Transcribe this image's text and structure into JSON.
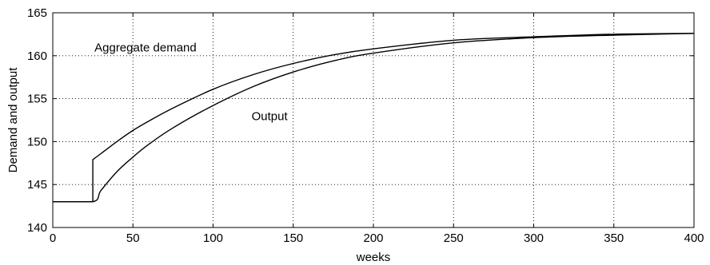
{
  "chart_data": {
    "type": "line",
    "title": "",
    "xlabel": "weeks",
    "ylabel": "Demand and output",
    "xlim": [
      0,
      400
    ],
    "ylim": [
      140,
      165
    ],
    "x_ticks": [
      0,
      50,
      100,
      150,
      200,
      250,
      300,
      350,
      400
    ],
    "y_ticks": [
      140,
      145,
      150,
      155,
      160,
      165
    ],
    "grid": true,
    "series": [
      {
        "name": "Aggregate demand",
        "x": [
          0,
          25,
          25,
          30,
          40,
          50,
          60,
          75,
          100,
          125,
          150,
          175,
          200,
          250,
          300,
          350,
          400
        ],
        "y": [
          143,
          143,
          147.9,
          148.6,
          150,
          151.3,
          152.4,
          153.9,
          156.1,
          157.8,
          159.1,
          160.1,
          160.8,
          161.8,
          162.2,
          162.5,
          162.6
        ]
      },
      {
        "name": "Output",
        "x": [
          0,
          25,
          30,
          40,
          50,
          60,
          75,
          100,
          125,
          150,
          175,
          200,
          250,
          300,
          350,
          400
        ],
        "y": [
          143,
          143,
          144.3,
          146.5,
          148.2,
          149.7,
          151.6,
          154.2,
          156.4,
          158.1,
          159.4,
          160.3,
          161.5,
          162.1,
          162.4,
          162.6
        ]
      }
    ],
    "annotations": [
      {
        "text": "Aggregate demand",
        "x": 26,
        "y": 160.5
      },
      {
        "text": "Output",
        "x": 124,
        "y": 152.5
      }
    ]
  }
}
